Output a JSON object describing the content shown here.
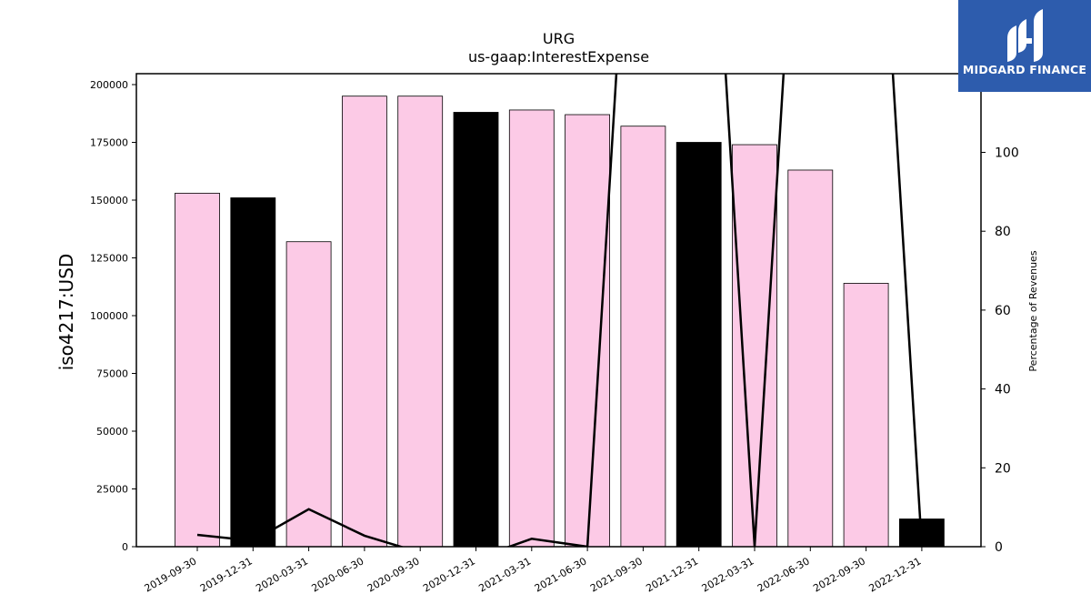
{
  "brand": {
    "name": "MIDGARD FINANCE",
    "bg_color": "#2d5cad"
  },
  "chart_data": {
    "type": "bar",
    "title": "URG",
    "subtitle": "us-gaap:InterestExpense",
    "ylabel": "iso4217:USD",
    "y2label": "Percentage of Revenues",
    "categories": [
      "2019-09-30",
      "2019-12-31",
      "2020-03-31",
      "2020-06-30",
      "2020-09-30",
      "2020-12-31",
      "2021-03-31",
      "2021-06-30",
      "2021-09-30",
      "2021-12-31",
      "2022-03-31",
      "2022-06-30",
      "2022-09-30",
      "2022-12-31"
    ],
    "values": [
      153000,
      151000,
      132000,
      195000,
      195000,
      188000,
      189000,
      187000,
      182000,
      175000,
      174000,
      163000,
      114000,
      12000
    ],
    "bar_colors": [
      "#fccae6",
      "#000000",
      "#fccae6",
      "#fccae6",
      "#fccae6",
      "#000000",
      "#fccae6",
      "#fccae6",
      "#fccae6",
      "#000000",
      "#fccae6",
      "#fccae6",
      "#fccae6",
      "#000000"
    ],
    "line_values": [
      3,
      1.5,
      9.5,
      2.8,
      -1.5,
      -3,
      2,
      0,
      null,
      null,
      0,
      null,
      null,
      0
    ],
    "line_color": "#000000",
    "ylim": [
      0,
      205000
    ],
    "yticks": [
      0,
      25000,
      50000,
      75000,
      100000,
      125000,
      150000,
      175000,
      200000
    ],
    "y2lim": [
      0,
      120
    ],
    "y2ticks": [
      0,
      20,
      40,
      60,
      80,
      100
    ],
    "grid": false,
    "legend": "none"
  }
}
